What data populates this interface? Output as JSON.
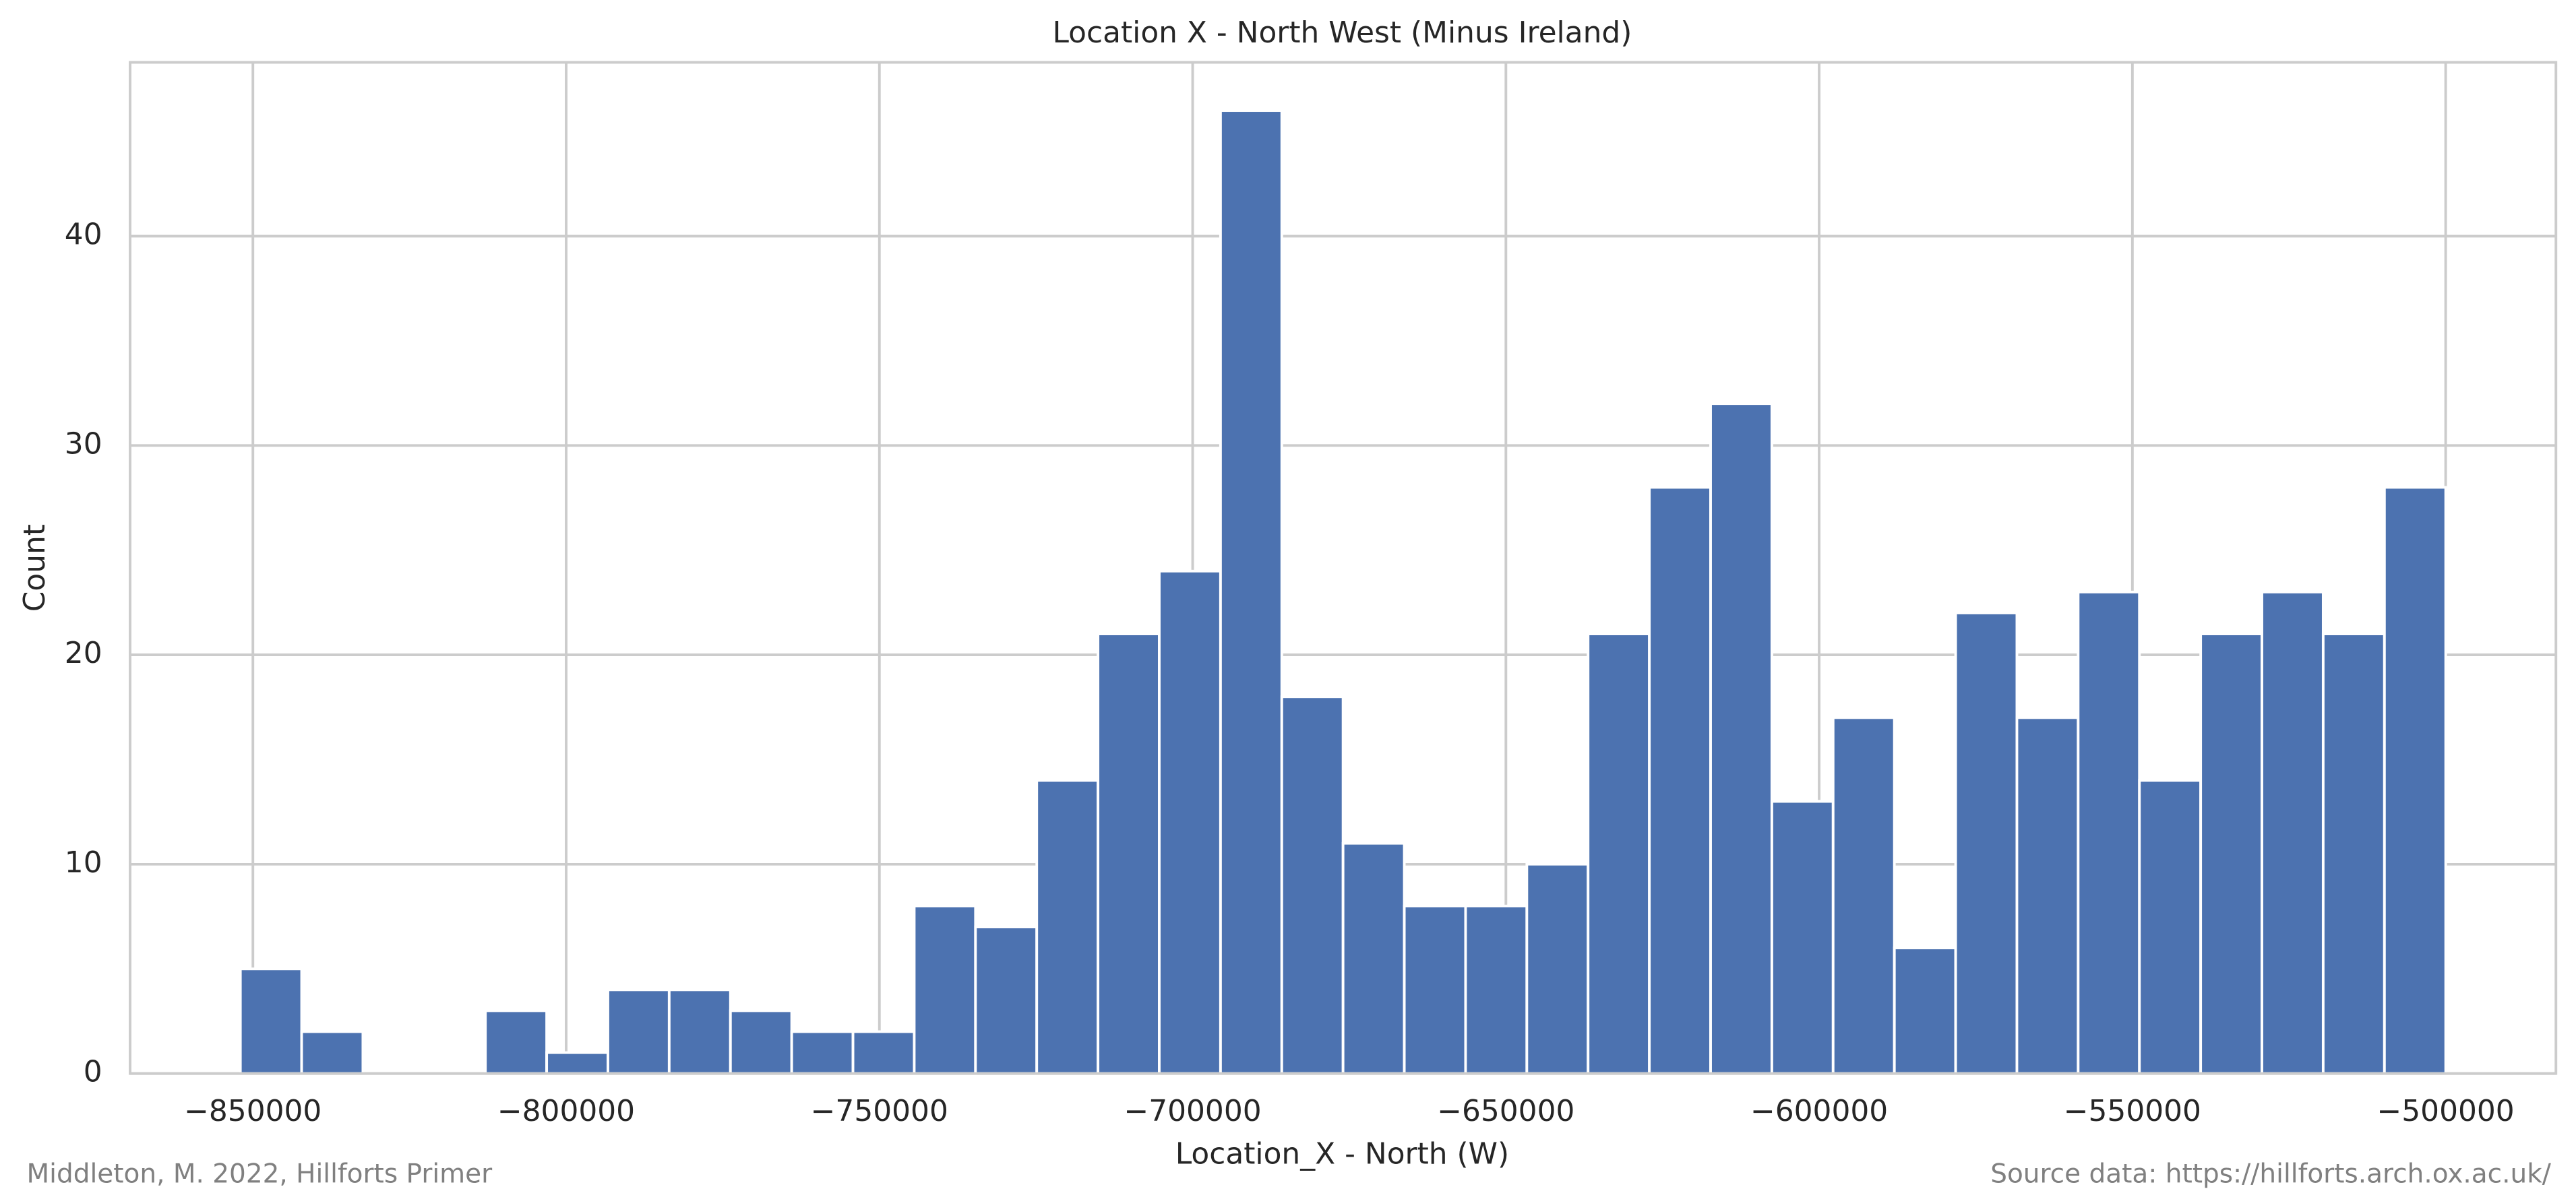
{
  "chart_data": {
    "type": "histogram",
    "title": "Location X - North West (Minus Ireland)",
    "x_label": "Location_X - North (W)",
    "y_label": "Count",
    "footer_left": "Middleton, M. 2022, Hillforts Primer",
    "footer_right": "Source data: https://hillforts.arch.ox.ac.uk/",
    "color": "#4c72b0",
    "grid": true,
    "bins": [
      -852000,
      -842222,
      -832444,
      -822666,
      -812888,
      -803110,
      -793332,
      -783554,
      -773776,
      -763998,
      -754220,
      -744442,
      -734664,
      -724886,
      -715108,
      -705330,
      -695552,
      -685774,
      -675996,
      -666218,
      -656440,
      -646662,
      -636884,
      -627106,
      -617328,
      -607550,
      -597772,
      -587994,
      -578216,
      -568438,
      -558660,
      -548882,
      -539104,
      -529326,
      -519548,
      -509770,
      -499992
    ],
    "counts": [
      5,
      2,
      0,
      0,
      3,
      1,
      4,
      4,
      3,
      2,
      2,
      8,
      7,
      14,
      21,
      24,
      46,
      18,
      11,
      8,
      8,
      10,
      21,
      28,
      32,
      13,
      17,
      6,
      22,
      17,
      23,
      14,
      21,
      23,
      21,
      28
    ],
    "xlim": [
      -869600,
      -482400
    ],
    "xticks": [
      {
        "value": -850000,
        "label": "−850000"
      },
      {
        "value": -800000,
        "label": "−800000"
      },
      {
        "value": -750000,
        "label": "−750000"
      },
      {
        "value": -700000,
        "label": "−700000"
      },
      {
        "value": -650000,
        "label": "−650000"
      },
      {
        "value": -600000,
        "label": "−600000"
      },
      {
        "value": -550000,
        "label": "−550000"
      },
      {
        "value": -500000,
        "label": "−500000"
      }
    ],
    "ylim": [
      0,
      48.3
    ],
    "yticks": [
      0,
      10,
      20,
      30,
      40
    ]
  }
}
